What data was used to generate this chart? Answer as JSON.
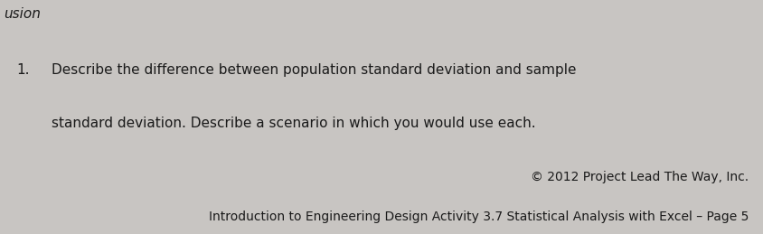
{
  "bg_color": "#c8c5c2",
  "header_text": "usion",
  "header_fontsize": 11,
  "header_italic": true,
  "item_number": "1.",
  "item_line1": "Describe the difference between population standard deviation and sample",
  "item_line2": "standard deviation. Describe a scenario in which you would use each.",
  "item_fontsize": 11,
  "footer_line1": "© 2012 Project Lead The Way, Inc.",
  "footer_line2": "Introduction to Engineering Design Activity 3.7 Statistical Analysis with Excel – Page 5",
  "footer_fontsize": 10,
  "text_color": "#1a1a1a"
}
